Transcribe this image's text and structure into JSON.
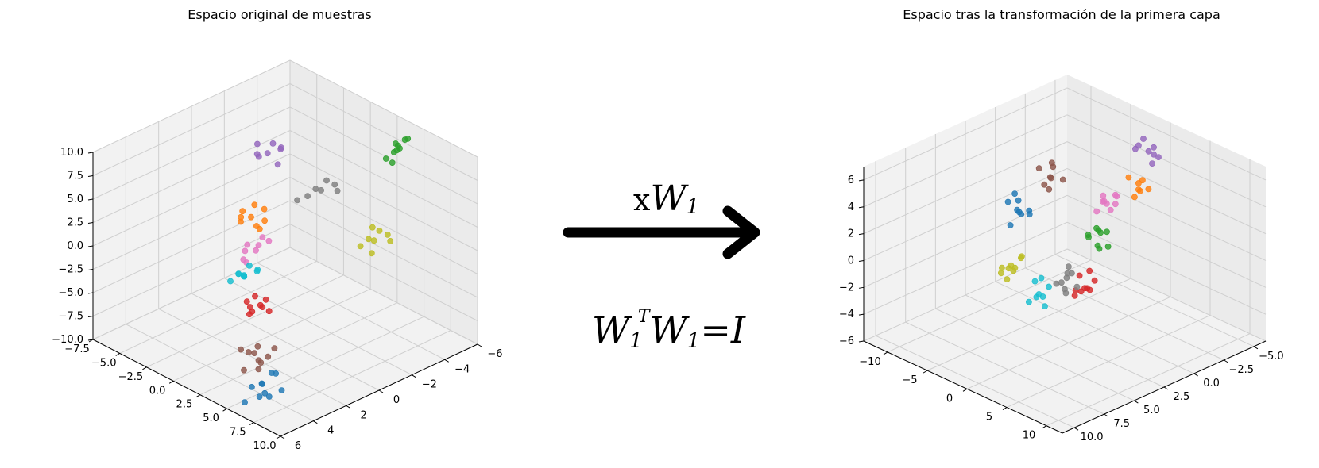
{
  "figure": {
    "arrow_label_prefix": "x",
    "arrow_label_W": "W",
    "arrow_label_sub": "1",
    "eq_W": "W",
    "eq_sub": "1",
    "eq_sup": "T",
    "eq_rhs": "=I"
  },
  "colors": {
    "blue": "#1f77b4",
    "orange": "#ff7f0e",
    "green": "#2ca02c",
    "red": "#d62728",
    "purple": "#9467bd",
    "brown": "#8c564b",
    "pink": "#e377c2",
    "gray": "#7f7f7f",
    "olive": "#bcbd22",
    "cyan": "#17becf"
  },
  "chart_data": [
    {
      "type": "scatter",
      "projection": "3d",
      "title": "Espacio original de muestras",
      "grid": true,
      "xlim": [
        -6,
        6
      ],
      "ylim": [
        -7.5,
        10
      ],
      "zlim": [
        -10,
        10
      ],
      "xticks": [
        "−6",
        "−4",
        "−2",
        "0",
        "2",
        "4",
        "6"
      ],
      "yticks": [
        "−7.5",
        "−5.0",
        "−2.5",
        "0.0",
        "2.5",
        "5.0",
        "7.5",
        "10.0"
      ],
      "zticks": [
        "−10.0",
        "−7.5",
        "−5.0",
        "−2.5",
        "0.0",
        "2.5",
        "5.0",
        "7.5",
        "10.0"
      ],
      "series": [
        {
          "color": "blue",
          "points": [
            [
              4.5,
              6,
              -8
            ],
            [
              4,
              6.5,
              -7
            ],
            [
              4.2,
              5.5,
              -8.5
            ],
            [
              5,
              7,
              -8
            ],
            [
              4.8,
              6.2,
              -9
            ],
            [
              3.8,
              5.8,
              -7.5
            ],
            [
              4.6,
              6.8,
              -8.8
            ],
            [
              5.2,
              6.1,
              -7.7
            ],
            [
              4.1,
              7.2,
              -8.3
            ],
            [
              5.5,
              5.9,
              -9.2
            ]
          ]
        },
        {
          "color": "orange",
          "points": [
            [
              -2,
              -5,
              -2
            ],
            [
              -2.5,
              -4.5,
              -2.5
            ],
            [
              -1.8,
              -5.5,
              -1.5
            ],
            [
              -2.2,
              -4.8,
              -3
            ],
            [
              -1.5,
              -5.2,
              -2.2
            ],
            [
              -2.8,
              -5,
              -1.8
            ],
            [
              -2,
              -4.2,
              -2.8
            ],
            [
              -1.9,
              -5.8,
              -2.4
            ],
            [
              -2.4,
              -5.3,
              -1.2
            ]
          ]
        },
        {
          "color": "green",
          "points": [
            [
              -5,
              4,
              8
            ],
            [
              -4.5,
              4.5,
              8.5
            ],
            [
              -5.5,
              3.5,
              7.5
            ],
            [
              -4.8,
              4.2,
              9
            ],
            [
              -5.2,
              3.8,
              8.2
            ],
            [
              -4.2,
              4.8,
              7.8
            ],
            [
              -5.6,
              4.1,
              8.8
            ],
            [
              -4.6,
              3.6,
              7.2
            ],
            [
              -5.1,
              4.6,
              9.4
            ]
          ]
        },
        {
          "color": "red",
          "points": [
            [
              2,
              2,
              -4
            ],
            [
              2.5,
              1.5,
              -3.5
            ],
            [
              1.8,
              2.5,
              -4.5
            ],
            [
              2.2,
              1.8,
              -3
            ],
            [
              2.8,
              2.2,
              -4.2
            ],
            [
              1.6,
              1.9,
              -3.8
            ],
            [
              2.4,
              2.8,
              -3.4
            ],
            [
              2.1,
              1.2,
              -4.6
            ],
            [
              2.9,
              2.6,
              -3.6
            ]
          ]
        },
        {
          "color": "purple",
          "points": [
            [
              -3,
              -5,
              4
            ],
            [
              -3.5,
              -4.5,
              4.5
            ],
            [
              -2.8,
              -5.5,
              3.5
            ],
            [
              -3.2,
              -4.8,
              5
            ],
            [
              -2.5,
              -5.2,
              4.2
            ],
            [
              -3.8,
              -5,
              3.8
            ],
            [
              -3.1,
              -4.2,
              3.2
            ],
            [
              -2.9,
              -5.8,
              4.6
            ]
          ]
        },
        {
          "color": "brown",
          "points": [
            [
              4,
              4.5,
              -6
            ],
            [
              3.5,
              5,
              -6.5
            ],
            [
              4.5,
              4,
              -5.5
            ],
            [
              3.8,
              4.8,
              -7
            ],
            [
              4.2,
              5.2,
              -6.2
            ],
            [
              3.6,
              4.2,
              -5.8
            ],
            [
              4.4,
              5.5,
              -6.8
            ],
            [
              3.9,
              3.8,
              -6.4
            ],
            [
              4.7,
              4.6,
              -7.2
            ],
            [
              3.3,
              5.3,
              -5.6
            ]
          ]
        },
        {
          "color": "pink",
          "points": [
            [
              -0.5,
              -2,
              -2
            ],
            [
              0,
              -2.5,
              -2.5
            ],
            [
              -0.8,
              -1.5,
              -1.5
            ],
            [
              0.3,
              -2.2,
              -3
            ],
            [
              -0.2,
              -1.8,
              -2.2
            ],
            [
              -1,
              -2.4,
              -1.8
            ],
            [
              0.5,
              -1.6,
              -2.8
            ],
            [
              -0.4,
              -2.9,
              -2.4
            ]
          ]
        },
        {
          "color": "gray",
          "points": [
            [
              -3,
              0,
              3
            ],
            [
              -3.5,
              0.5,
              3.5
            ],
            [
              -2.5,
              -0.5,
              2.5
            ],
            [
              -3.2,
              0.2,
              4
            ],
            [
              -2.8,
              -0.2,
              3.2
            ],
            [
              -3.6,
              0.6,
              2.8
            ],
            [
              -2.2,
              -1,
              2
            ]
          ]
        },
        {
          "color": "olive",
          "points": [
            [
              -1,
              8,
              4
            ],
            [
              -1.5,
              8.5,
              4.5
            ],
            [
              -0.5,
              7.5,
              3.5
            ],
            [
              -1.2,
              8.2,
              5
            ],
            [
              -0.8,
              7.8,
              4.2
            ],
            [
              -1.6,
              8.6,
              3.8
            ],
            [
              -0.6,
              8.4,
              3.2
            ],
            [
              -1.3,
              7.4,
              4.8
            ]
          ]
        },
        {
          "color": "cyan",
          "points": [
            [
              3,
              2,
              0
            ],
            [
              2.5,
              2.5,
              0.5
            ],
            [
              3.5,
              1.5,
              -0.5
            ],
            [
              2.8,
              2.2,
              1
            ],
            [
              3.2,
              1.8,
              0.2
            ],
            [
              2.6,
              1.4,
              -0.8
            ],
            [
              3.4,
              2.6,
              0.6
            ],
            [
              2.2,
              2.0,
              -0.2
            ],
            [
              3.6,
              2.4,
              0.9
            ]
          ]
        }
      ]
    },
    {
      "type": "scatter",
      "projection": "3d",
      "title": "Espacio tras la transformación de la primera capa",
      "grid": true,
      "xlim": [
        -6,
        11
      ],
      "ylim": [
        -13,
        12
      ],
      "zlim": [
        -6,
        7
      ],
      "xticks": [
        "−5.0",
        "−2.5",
        "0.0",
        "2.5",
        "5.0",
        "7.5",
        "10.0"
      ],
      "yticks": [
        "−10",
        "−5",
        "0",
        "5",
        "10"
      ],
      "zticks": [
        "−6",
        "−4",
        "−2",
        "0",
        "2",
        "4",
        "6"
      ],
      "series": [
        {
          "color": "blue",
          "points": [
            [
              0,
              -10,
              0
            ],
            [
              0.5,
              -9.5,
              0.5
            ],
            [
              -0.5,
              -10.5,
              -0.5
            ],
            [
              0.2,
              -9.8,
              1
            ],
            [
              0.6,
              -10.2,
              -0.8
            ],
            [
              -0.3,
              -9.2,
              0.2
            ],
            [
              0.4,
              -10.8,
              0.7
            ],
            [
              -0.6,
              -9.6,
              -0.3
            ],
            [
              0.1,
              -10.4,
              1.3
            ]
          ]
        },
        {
          "color": "orange",
          "points": [
            [
              -4,
              -1,
              3
            ],
            [
              -3.5,
              -1.5,
              3.5
            ],
            [
              -4.5,
              -0.5,
              2.5
            ],
            [
              -3.8,
              -1.2,
              2
            ],
            [
              -4.2,
              -0.8,
              3.2
            ],
            [
              -3.6,
              -0.2,
              2.8
            ],
            [
              -4.4,
              -1.6,
              2.2
            ]
          ]
        },
        {
          "color": "green",
          "points": [
            [
              2,
              3,
              3
            ],
            [
              2.5,
              3.5,
              3.5
            ],
            [
              1.5,
              2.5,
              2.5
            ],
            [
              2.2,
              3.2,
              2
            ],
            [
              1.8,
              2.8,
              1.5
            ],
            [
              2.6,
              2.6,
              2.8
            ],
            [
              1.6,
              3.6,
              1.8
            ],
            [
              2.3,
              2.2,
              2.4
            ],
            [
              1.9,
              3.9,
              3.1
            ]
          ]
        },
        {
          "color": "red",
          "points": [
            [
              0.5,
              -1,
              -3
            ],
            [
              1,
              -1.5,
              -3.5
            ],
            [
              0,
              -0.5,
              -2.5
            ],
            [
              0.8,
              -1.2,
              -2
            ],
            [
              0.2,
              -0.8,
              -3.2
            ],
            [
              1.2,
              -0.4,
              -2.8
            ],
            [
              -0.3,
              -1.6,
              -2.2
            ],
            [
              0.6,
              -2,
              -3.4
            ],
            [
              0.9,
              -0.1,
              -2.6
            ]
          ]
        },
        {
          "color": "purple",
          "points": [
            [
              -5.5,
              -2,
              4.5
            ],
            [
              -5,
              -2.5,
              5
            ],
            [
              -6,
              -1.5,
              4
            ],
            [
              -5.2,
              -2.2,
              5.5
            ],
            [
              -5.8,
              -1.8,
              4.2
            ],
            [
              -4.8,
              -2.6,
              4.8
            ],
            [
              -5.4,
              -1.4,
              3.8
            ],
            [
              -6.2,
              -2.4,
              4.4
            ]
          ]
        },
        {
          "color": "brown",
          "points": [
            [
              -2,
              -9,
              2
            ],
            [
              -2.5,
              -9.5,
              2.5
            ],
            [
              -1.5,
              -8.5,
              1.5
            ],
            [
              -2.2,
              -9.2,
              3
            ],
            [
              -1.8,
              -8.8,
              2.2
            ],
            [
              -2.6,
              -8.4,
              1.8
            ],
            [
              -1.4,
              -9.6,
              2.8
            ],
            [
              -2.1,
              -10,
              1.2
            ]
          ]
        },
        {
          "color": "pink",
          "points": [
            [
              -2,
              -2,
              2
            ],
            [
              -2.5,
              -1.5,
              2.5
            ],
            [
              -1.5,
              -2.5,
              1.5
            ],
            [
              -2.2,
              -1.2,
              2.8
            ],
            [
              -1.8,
              -2.2,
              2.2
            ],
            [
              -2.6,
              -1.8,
              1.8
            ],
            [
              -1.4,
              -1.4,
              2.6
            ],
            [
              -2.1,
              -2.6,
              2.4
            ],
            [
              -1.6,
              -0.9,
              2.0
            ]
          ]
        },
        {
          "color": "gray",
          "points": [
            [
              4,
              2,
              0
            ],
            [
              4.5,
              2.5,
              -0.5
            ],
            [
              3.5,
              1.5,
              0.5
            ],
            [
              4.2,
              2.2,
              -1
            ],
            [
              3.8,
              1.8,
              0.2
            ],
            [
              4.6,
              1.6,
              -0.3
            ],
            [
              3.4,
              2.4,
              -0.8
            ],
            [
              4.1,
              2.8,
              0.6
            ],
            [
              3.9,
              1.2,
              -0.6
            ]
          ]
        },
        {
          "color": "olive",
          "points": [
            [
              4,
              -5,
              -1
            ],
            [
              4.5,
              -5.5,
              -1.5
            ],
            [
              3.5,
              -4.5,
              -0.5
            ],
            [
              4.2,
              -5.2,
              -2
            ],
            [
              3.8,
              -4.8,
              -1.2
            ],
            [
              4.6,
              -4.4,
              -0.8
            ],
            [
              3.4,
              -5.6,
              -1.8
            ],
            [
              4.1,
              -6,
              -1.4
            ],
            [
              3.7,
              -4.1,
              -0.2
            ]
          ]
        },
        {
          "color": "cyan",
          "points": [
            [
              3,
              -3,
              -3
            ],
            [
              3.5,
              -3.5,
              -3.5
            ],
            [
              2.5,
              -2.5,
              -2.5
            ],
            [
              3.2,
              -3.2,
              -2
            ],
            [
              2.8,
              -2.8,
              -3.2
            ],
            [
              3.6,
              -2.4,
              -2.8
            ],
            [
              2.4,
              -3.6,
              -2.2
            ],
            [
              3.1,
              -2.1,
              -3.6
            ]
          ]
        }
      ]
    }
  ]
}
